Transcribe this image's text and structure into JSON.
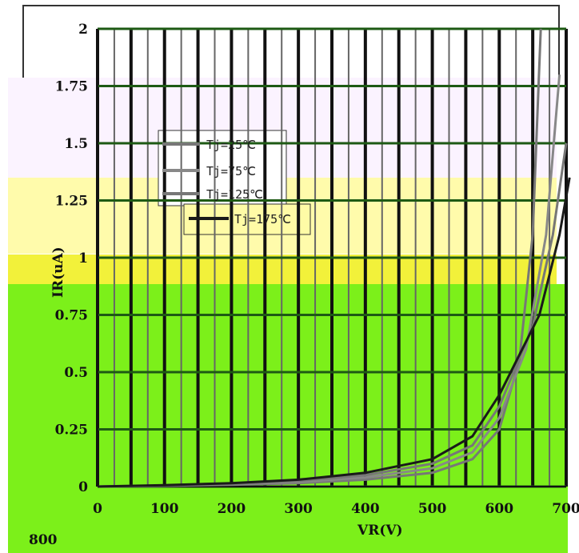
{
  "chart_data": {
    "type": "line",
    "title": "",
    "xlabel": "VR(V)",
    "ylabel": "IR(uA)",
    "xlim": [
      0,
      700
    ],
    "ylim": [
      0,
      2
    ],
    "x_ticks": [
      "0",
      "100",
      "200",
      "300",
      "400",
      "500",
      "600",
      "700"
    ],
    "y_ticks": [
      "0",
      "0.25",
      "0.5",
      "0.75",
      "1",
      "1.25",
      "1.5",
      "1.75",
      "2"
    ],
    "grid": true,
    "legend_position": "top-left",
    "series": [
      {
        "name": "Tj=25℃",
        "color": "#777777",
        "x": [
          0,
          100,
          200,
          300,
          400,
          500,
          560,
          600,
          630,
          650,
          662
        ],
        "y": [
          0,
          0.003,
          0.008,
          0.015,
          0.03,
          0.06,
          0.12,
          0.25,
          0.55,
          1.1,
          2.0
        ]
      },
      {
        "name": "Tj=75℃",
        "color": "#888888",
        "x": [
          0,
          100,
          200,
          300,
          400,
          500,
          560,
          600,
          640,
          670,
          690
        ],
        "y": [
          0,
          0.004,
          0.01,
          0.02,
          0.04,
          0.08,
          0.15,
          0.3,
          0.6,
          1.1,
          1.8
        ]
      },
      {
        "name": "Tj=125℃",
        "color": "#777777",
        "x": [
          0,
          100,
          200,
          300,
          400,
          500,
          560,
          600,
          650,
          680,
          700
        ],
        "y": [
          0,
          0.005,
          0.012,
          0.025,
          0.05,
          0.1,
          0.18,
          0.35,
          0.7,
          1.1,
          1.5
        ]
      },
      {
        "name": "Tj=175℃",
        "color": "#1a1a1a",
        "x": [
          0,
          100,
          200,
          300,
          400,
          500,
          560,
          600,
          660,
          690,
          705
        ],
        "y": [
          0,
          0.006,
          0.015,
          0.03,
          0.06,
          0.12,
          0.22,
          0.4,
          0.75,
          1.1,
          1.35
        ]
      }
    ]
  },
  "left_panel": {
    "tick_label": "800"
  }
}
